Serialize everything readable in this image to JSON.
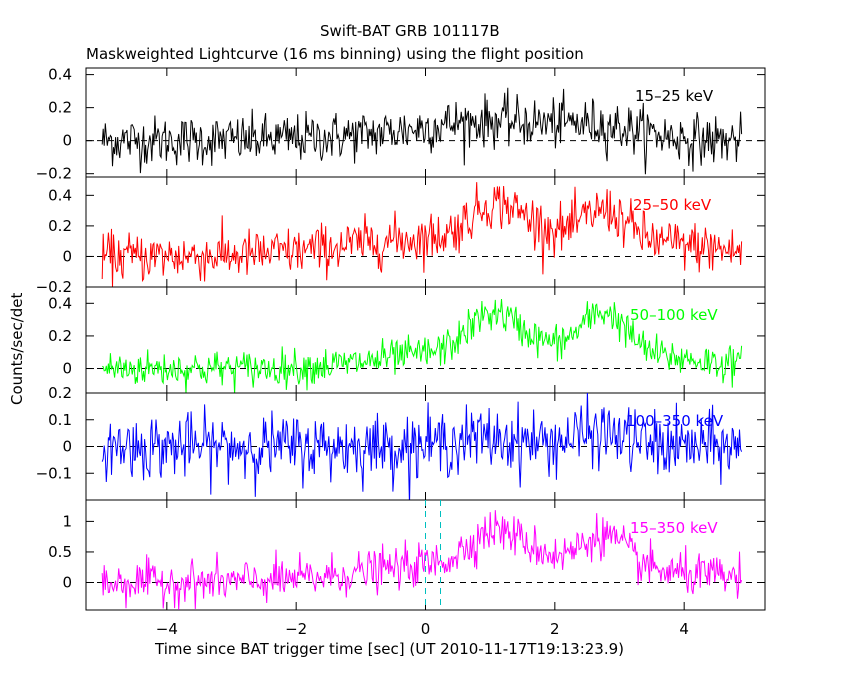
{
  "title": "Swift-BAT GRB 101117B",
  "subtitle": "Maskweighted Lightcurve (16 ms binning) using the flight position",
  "xlabel": "Time since BAT trigger time [sec] (UT 2010-11-17T19:13:23.9)",
  "ylabel": "Counts/sec/det",
  "colors": {
    "15-25": "#000000",
    "25-50": "#ff0000",
    "50-100": "#00ff00",
    "100-350": "#0000ff",
    "15-350": "#ff00ff",
    "markers": "#00bfbf"
  },
  "chart_data": {
    "type": "line",
    "xlim": [
      -5.25,
      5.25
    ],
    "xticks": [
      -4,
      -2,
      0,
      2,
      4
    ],
    "x_range": [
      -5.0,
      4.9
    ],
    "bin_width_s": 0.016,
    "vertical_markers_x": [
      0.0,
      0.232
    ],
    "panels": [
      {
        "name": "15-25 keV",
        "label": "15–25 keV",
        "ylim": [
          -0.22,
          0.44
        ],
        "yticks": [
          -0.2,
          0,
          0.2,
          0.4
        ],
        "ytick_labels": [
          "−0.2",
          "0",
          "0.2",
          "0.4"
        ],
        "noise_sigma": 0.075,
        "pulses": [
          {
            "t": -0.5,
            "amp": 0.03,
            "width": 1.2
          },
          {
            "t": 1.0,
            "amp": 0.1,
            "width": 0.9
          },
          {
            "t": 2.7,
            "amp": 0.08,
            "width": 0.7
          }
        ]
      },
      {
        "name": "25-50 keV",
        "label": "25–50 keV",
        "ylim": [
          -0.2,
          0.52
        ],
        "yticks": [
          -0.2,
          0,
          0.2,
          0.4
        ],
        "ytick_labels": [
          "−0.2",
          "0",
          "0.2",
          "0.4"
        ],
        "noise_sigma": 0.08,
        "pulses": [
          {
            "t": 0.2,
            "amp": 0.12,
            "width": 1.4
          },
          {
            "t": 1.0,
            "amp": 0.2,
            "width": 0.35
          },
          {
            "t": 1.6,
            "amp": 0.12,
            "width": 0.4
          },
          {
            "t": 2.75,
            "amp": 0.22,
            "width": 0.35
          },
          {
            "t": 3.5,
            "amp": 0.08,
            "width": 1.0
          }
        ]
      },
      {
        "name": "50-100 keV",
        "label": "50–100 keV",
        "ylim": [
          -0.15,
          0.5
        ],
        "yticks": [
          0,
          0.2,
          0.4
        ],
        "ytick_labels": [
          "0",
          "0.2",
          "0.4"
        ],
        "noise_sigma": 0.055,
        "pulses": [
          {
            "t": 0.5,
            "amp": 0.1,
            "width": 1.1
          },
          {
            "t": 1.0,
            "amp": 0.2,
            "width": 0.35
          },
          {
            "t": 1.6,
            "amp": 0.1,
            "width": 0.5
          },
          {
            "t": 2.75,
            "amp": 0.28,
            "width": 0.35
          },
          {
            "t": 3.5,
            "amp": 0.07,
            "width": 0.9
          }
        ]
      },
      {
        "name": "100-350 keV",
        "label": "100–350 keV",
        "ylim": [
          -0.2,
          0.2
        ],
        "yticks": [
          -0.1,
          0,
          0.1,
          0.2
        ],
        "ytick_labels": [
          "−0.1",
          "0",
          "0.1",
          "0.2"
        ],
        "noise_sigma": 0.06,
        "pulses": [
          {
            "t": 1.0,
            "amp": 0.03,
            "width": 0.6
          },
          {
            "t": 2.7,
            "amp": 0.05,
            "width": 0.4
          }
        ]
      },
      {
        "name": "15-350 keV",
        "label": "15–350 keV",
        "ylim": [
          -0.45,
          1.35
        ],
        "yticks": [
          0,
          0.5,
          1
        ],
        "ytick_labels": [
          "0",
          "0.5",
          "1"
        ],
        "noise_sigma": 0.17,
        "pulses": [
          {
            "t": 0.4,
            "amp": 0.3,
            "width": 1.3
          },
          {
            "t": 1.0,
            "amp": 0.45,
            "width": 0.35
          },
          {
            "t": 1.6,
            "amp": 0.3,
            "width": 0.45
          },
          {
            "t": 2.75,
            "amp": 0.6,
            "width": 0.35
          },
          {
            "t": 3.5,
            "amp": 0.15,
            "width": 1.0
          }
        ]
      }
    ]
  }
}
